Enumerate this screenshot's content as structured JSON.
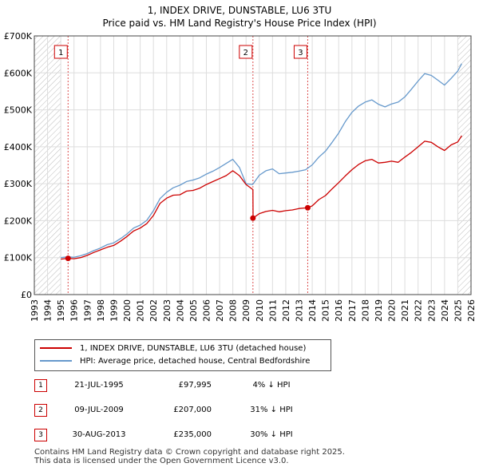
{
  "chart_data": {
    "type": "line",
    "title": "1, INDEX DRIVE, DUNSTABLE, LU6 3TU",
    "subtitle": "Price paid vs. HM Land Registry's House Price Index (HPI)",
    "ylim": [
      0,
      700000
    ],
    "xlim": [
      1993,
      2026
    ],
    "y_ticks": [
      0,
      100000,
      200000,
      300000,
      400000,
      500000,
      600000,
      700000
    ],
    "y_tick_labels": [
      "£0",
      "£100K",
      "£200K",
      "£300K",
      "£400K",
      "£500K",
      "£600K",
      "£700K"
    ],
    "x_ticks": [
      1993,
      1994,
      1995,
      1996,
      1997,
      1998,
      1999,
      2000,
      2001,
      2002,
      2003,
      2004,
      2005,
      2006,
      2007,
      2008,
      2009,
      2010,
      2011,
      2012,
      2013,
      2014,
      2015,
      2016,
      2017,
      2018,
      2019,
      2020,
      2021,
      2022,
      2023,
      2024,
      2025,
      2026
    ],
    "x_tick_labels": [
      "1993",
      "1994",
      "1995",
      "1996",
      "1997",
      "1998",
      "1999",
      "2000",
      "2001",
      "2002",
      "2003",
      "2004",
      "2005",
      "2006",
      "2007",
      "2008",
      "2009",
      "2010",
      "2011",
      "2012",
      "2013",
      "2014",
      "2015",
      "2016",
      "2017",
      "2018",
      "2019",
      "2020",
      "2021",
      "2022",
      "2023",
      "2024",
      "2025",
      "2026"
    ],
    "hatched_before": 1995.0,
    "hatched_after": 2025.0,
    "series": [
      {
        "name": "1, INDEX DRIVE, DUNSTABLE, LU6 3TU (detached house)",
        "color": "#cc0000",
        "x": [
          1995.0,
          1995.55,
          1996.0,
          1996.5,
          1997.0,
          1997.5,
          1998.0,
          1998.5,
          1999.0,
          1999.5,
          2000.0,
          2000.5,
          2001.0,
          2001.5,
          2002.0,
          2002.5,
          2003.0,
          2003.5,
          2004.0,
          2004.5,
          2005.0,
          2005.5,
          2006.0,
          2006.5,
          2007.0,
          2007.5,
          2008.0,
          2008.5,
          2009.0,
          2009.52,
          2009.53,
          2010.0,
          2010.5,
          2011.0,
          2011.5,
          2012.0,
          2012.5,
          2013.0,
          2013.66,
          2014.0,
          2014.5,
          2015.0,
          2015.5,
          2016.0,
          2016.5,
          2017.0,
          2017.5,
          2018.0,
          2018.5,
          2019.0,
          2019.5,
          2020.0,
          2020.5,
          2021.0,
          2021.5,
          2022.0,
          2022.5,
          2023.0,
          2023.5,
          2024.0,
          2024.5,
          2025.0,
          2025.3
        ],
        "y": [
          96000,
          97995,
          97000,
          100000,
          106000,
          114000,
          121000,
          128000,
          133000,
          144000,
          157000,
          172000,
          180000,
          192000,
          214000,
          247000,
          261000,
          269000,
          270000,
          280000,
          282000,
          288000,
          298000,
          306000,
          314000,
          322000,
          335000,
          322000,
          298000,
          284000,
          207000,
          219000,
          225000,
          228000,
          224000,
          227000,
          229000,
          233000,
          235000,
          240000,
          257000,
          268000,
          286000,
          303000,
          321000,
          338000,
          352000,
          362000,
          366000,
          356000,
          358000,
          361000,
          358000,
          372000,
          385000,
          400000,
          415000,
          412000,
          400000,
          390000,
          405000,
          413000,
          430000
        ]
      },
      {
        "name": "HPI: Average price, detached house, Central Bedfordshire",
        "color": "#6699cc",
        "x": [
          1995.0,
          1995.5,
          1996.0,
          1996.5,
          1997.0,
          1997.5,
          1998.0,
          1998.5,
          1999.0,
          1999.5,
          2000.0,
          2000.5,
          2001.0,
          2001.5,
          2002.0,
          2002.5,
          2003.0,
          2003.5,
          2004.0,
          2004.5,
          2005.0,
          2005.5,
          2006.0,
          2006.5,
          2007.0,
          2007.5,
          2008.0,
          2008.5,
          2009.0,
          2009.5,
          2010.0,
          2010.5,
          2011.0,
          2011.5,
          2012.0,
          2012.5,
          2013.0,
          2013.5,
          2014.0,
          2014.5,
          2015.0,
          2015.5,
          2016.0,
          2016.5,
          2017.0,
          2017.5,
          2018.0,
          2018.5,
          2019.0,
          2019.5,
          2020.0,
          2020.5,
          2021.0,
          2021.5,
          2022.0,
          2022.5,
          2023.0,
          2023.5,
          2024.0,
          2024.5,
          2025.0,
          2025.3
        ],
        "y": [
          100000,
          102000,
          101000,
          105000,
          111000,
          119000,
          126000,
          135000,
          140000,
          151000,
          164000,
          180000,
          188000,
          201000,
          227000,
          260000,
          277000,
          289000,
          296000,
          306000,
          310000,
          316000,
          326000,
          334000,
          344000,
          355000,
          366000,
          344000,
          300000,
          298000,
          323000,
          335000,
          340000,
          327000,
          329000,
          331000,
          334000,
          338000,
          351000,
          372000,
          388000,
          412000,
          437000,
          468000,
          493000,
          510000,
          521000,
          527000,
          515000,
          508000,
          516000,
          521000,
          535000,
          556000,
          578000,
          598000,
          593000,
          580000,
          567000,
          585000,
          605000,
          625000
        ]
      }
    ],
    "markers": [
      {
        "id": "1",
        "x": 1995.55,
        "y": 97995
      },
      {
        "id": "2",
        "x": 2009.52,
        "y": 207000
      },
      {
        "id": "3",
        "x": 2013.66,
        "y": 235000
      }
    ]
  },
  "legend": {
    "items": [
      {
        "label": "1, INDEX DRIVE, DUNSTABLE, LU6 3TU (detached house)",
        "color": "#cc0000"
      },
      {
        "label": "HPI: Average price, detached house, Central Bedfordshire",
        "color": "#6699cc"
      }
    ]
  },
  "transactions": [
    {
      "id": "1",
      "date": "21-JUL-1995",
      "price": "£97,995",
      "hpi": "4% ↓ HPI"
    },
    {
      "id": "2",
      "date": "09-JUL-2009",
      "price": "£207,000",
      "hpi": "31% ↓ HPI"
    },
    {
      "id": "3",
      "date": "30-AUG-2013",
      "price": "£235,000",
      "hpi": "30% ↓ HPI"
    }
  ],
  "footer": {
    "line1": "Contains HM Land Registry data © Crown copyright and database right 2025.",
    "line2": "This data is licensed under the Open Government Licence v3.0."
  }
}
